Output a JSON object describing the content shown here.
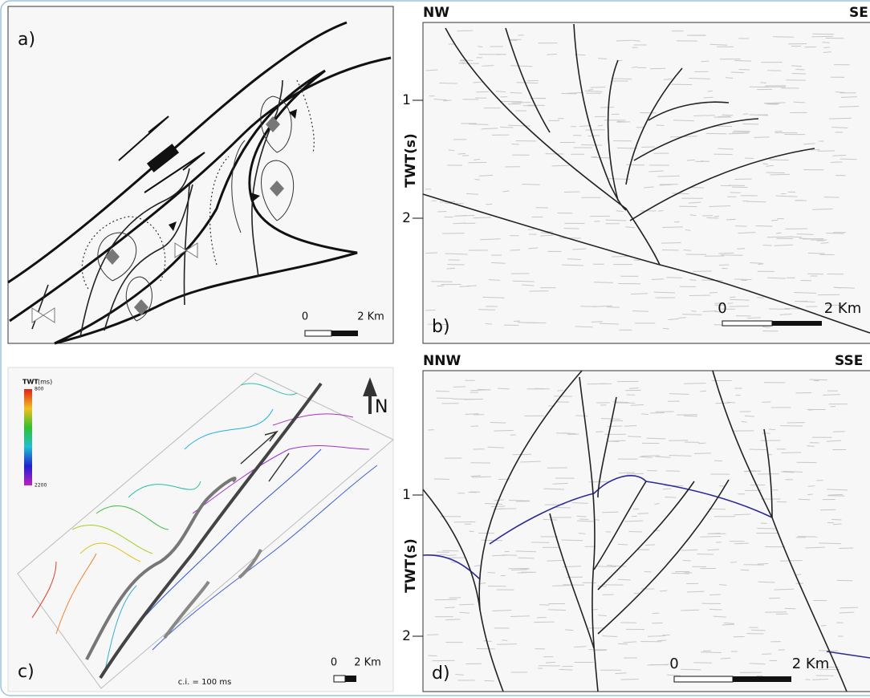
{
  "panels": {
    "a": {
      "label": "a)",
      "scale": {
        "start": "0",
        "end": "2 Km"
      }
    },
    "b": {
      "label": "b)",
      "left": "NW",
      "right": "SE",
      "axis_title": "TWT(s)",
      "ticks": [
        "1",
        "2"
      ],
      "scale": {
        "start": "0",
        "end": "2 Km"
      }
    },
    "c": {
      "label": "c)",
      "legend_title": "TWT",
      "legend_unit": "(ms)",
      "legend_top": "800",
      "legend_bottom": "2200",
      "north": "N",
      "contour_interval": "c.i. = 100 ms",
      "scale": {
        "start": "0",
        "end": "2 Km"
      }
    },
    "d": {
      "label": "d)",
      "left": "NNW",
      "right": "SSE",
      "axis_title": "TWT(s)",
      "ticks": [
        "1",
        "2"
      ],
      "scale": {
        "start": "0",
        "end": "2 Km"
      }
    }
  }
}
